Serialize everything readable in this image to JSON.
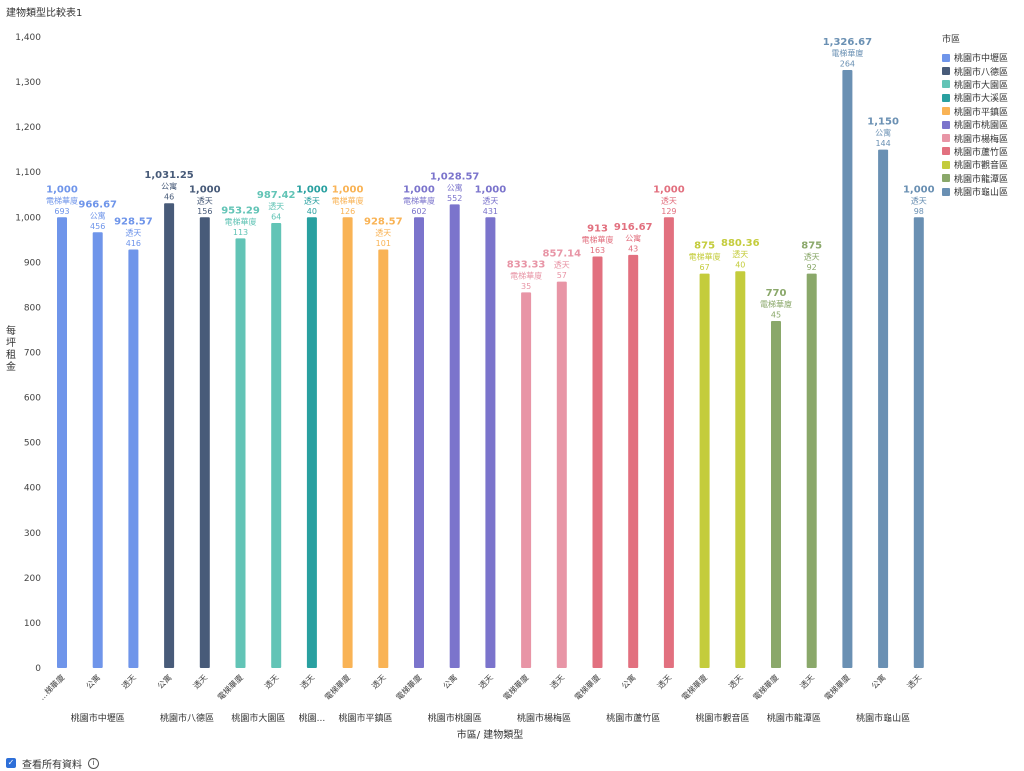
{
  "page": {
    "title": "建物類型比較表1",
    "footer_label": "查看所有資料",
    "info_icon": "info-icon"
  },
  "legend": {
    "title": "市區"
  },
  "chart_data": {
    "type": "bar",
    "title": "建物類型比較表1",
    "xlabel": "市區/ 建物類型",
    "ylabel": "每坪租金",
    "ylim": [
      0,
      1400
    ],
    "yticks": [
      0,
      100,
      200,
      300,
      400,
      500,
      600,
      700,
      800,
      900,
      1000,
      1100,
      1200,
      1300,
      1400
    ],
    "grid": false,
    "legend_position": "right",
    "groups": [
      {
        "name": "桃園市中壢區",
        "label": "桃園市中壢區",
        "color": "#6f95ea",
        "bars": [
          {
            "category": "電梯華廈",
            "axis_label": "…梯華廈",
            "value": 1000,
            "value_label": "1,000",
            "count": 693
          },
          {
            "category": "公寓",
            "axis_label": "公寓",
            "value": 966.67,
            "value_label": "966.67",
            "count": 456
          },
          {
            "category": "透天",
            "axis_label": "透天",
            "value": 928.57,
            "value_label": "928.57",
            "count": 416
          }
        ]
      },
      {
        "name": "桃園市八德區",
        "label": "桃園市八德區",
        "color": "#485b79",
        "bars": [
          {
            "category": "公寓",
            "axis_label": "公寓",
            "value": 1031.25,
            "value_label": "1,031.25",
            "count": 46
          },
          {
            "category": "透天",
            "axis_label": "透天",
            "value": 1000,
            "value_label": "1,000",
            "count": 156
          }
        ]
      },
      {
        "name": "桃園市大園區",
        "label": "桃園市大園區",
        "color": "#62c4b6",
        "bars": [
          {
            "category": "電梯華廈",
            "axis_label": "電梯華廈",
            "value": 953.29,
            "value_label": "953.29",
            "count": 113
          },
          {
            "category": "透天",
            "axis_label": "透天",
            "value": 987.42,
            "value_label": "987.42",
            "count": 64
          }
        ]
      },
      {
        "name": "桃園市大溪區",
        "label": "桃園...",
        "color": "#29a0a0",
        "bars": [
          {
            "category": "透天",
            "axis_label": "透天",
            "value": 1000,
            "value_label": "1,000",
            "count": 40
          }
        ]
      },
      {
        "name": "桃園市平鎮區",
        "label": "桃園市平鎮區",
        "color": "#f9b355",
        "bars": [
          {
            "category": "電梯華廈",
            "axis_label": "電梯華廈",
            "value": 1000,
            "value_label": "1,000",
            "count": 126
          },
          {
            "category": "透天",
            "axis_label": "透天",
            "value": 928.57,
            "value_label": "928.57",
            "count": 101
          }
        ]
      },
      {
        "name": "桃園市桃園區",
        "label": "桃園市桃園區",
        "color": "#7b74cc",
        "bars": [
          {
            "category": "電梯華廈",
            "axis_label": "電梯華廈",
            "value": 1000,
            "value_label": "1,000",
            "count": 602
          },
          {
            "category": "公寓",
            "axis_label": "公寓",
            "value": 1028.57,
            "value_label": "1,028.57",
            "count": 552
          },
          {
            "category": "透天",
            "axis_label": "透天",
            "value": 1000,
            "value_label": "1,000",
            "count": 431
          }
        ]
      },
      {
        "name": "桃園市楊梅區",
        "label": "桃園市楊梅區",
        "color": "#e895a6",
        "bars": [
          {
            "category": "電梯華廈",
            "axis_label": "電梯華廈",
            "value": 833.33,
            "value_label": "833.33",
            "count": 35
          },
          {
            "category": "透天",
            "axis_label": "透天",
            "value": 857.14,
            "value_label": "857.14",
            "count": 57
          }
        ]
      },
      {
        "name": "桃園市蘆竹區",
        "label": "桃園市蘆竹區",
        "color": "#e2707f",
        "bars": [
          {
            "category": "電梯華廈",
            "axis_label": "電梯華廈",
            "value": 913,
            "value_label": "913",
            "count": 163
          },
          {
            "category": "公寓",
            "axis_label": "公寓",
            "value": 916.67,
            "value_label": "916.67",
            "count": 43
          },
          {
            "category": "透天",
            "axis_label": "透天",
            "value": 1000,
            "value_label": "1,000",
            "count": 129
          }
        ]
      },
      {
        "name": "桃園市觀音區",
        "label": "桃園市觀音區",
        "color": "#c4cc3c",
        "bars": [
          {
            "category": "電梯華廈",
            "axis_label": "電梯華廈",
            "value": 875,
            "value_label": "875",
            "count": 67
          },
          {
            "category": "透天",
            "axis_label": "透天",
            "value": 880.36,
            "value_label": "880.36",
            "count": 40
          }
        ]
      },
      {
        "name": "桃園市龍潭區",
        "label": "桃園市龍潭區",
        "color": "#8aa86a",
        "bars": [
          {
            "category": "電梯華廈",
            "axis_label": "電梯華廈",
            "value": 770,
            "value_label": "770",
            "count": 45
          },
          {
            "category": "透天",
            "axis_label": "透天",
            "value": 875,
            "value_label": "875",
            "count": 92
          }
        ]
      },
      {
        "name": "桃園市龜山區",
        "label": "桃園市龜山區",
        "color": "#6a90b3",
        "bars": [
          {
            "category": "電梯華廈",
            "axis_label": "電梯華廈",
            "value": 1326.67,
            "value_label": "1,326.67",
            "count": 264
          },
          {
            "category": "公寓",
            "axis_label": "公寓",
            "value": 1150,
            "value_label": "1,150",
            "count": 144
          },
          {
            "category": "透天",
            "axis_label": "透天",
            "value": 1000,
            "value_label": "1,000",
            "count": 98
          }
        ]
      }
    ]
  }
}
